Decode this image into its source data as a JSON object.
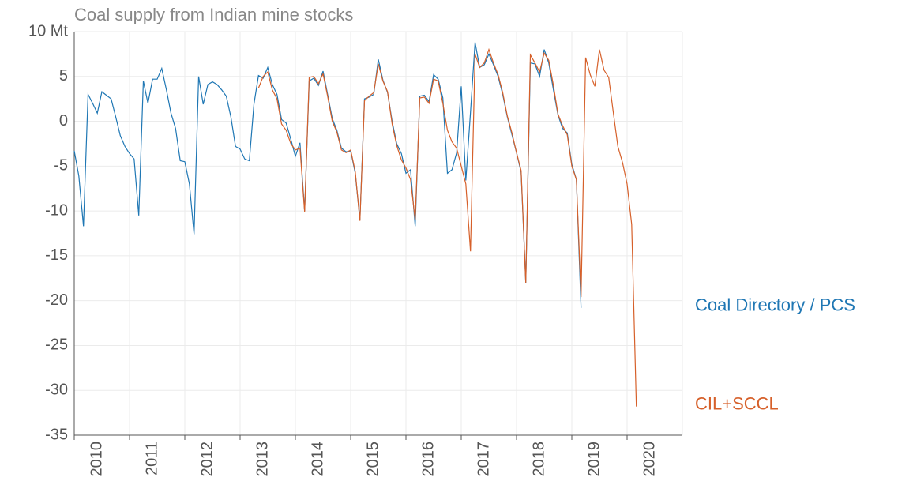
{
  "chart_data": {
    "type": "line",
    "title": "Coal supply from Indian mine stocks",
    "categories": [
      null,
      null,
      null,
      null,
      null,
      "2010",
      null,
      null,
      null,
      null,
      null,
      null,
      null,
      null,
      null,
      null,
      null,
      "2011",
      null,
      null,
      null,
      null,
      null,
      null,
      null,
      null,
      null,
      null,
      null,
      "2012",
      null,
      null,
      null,
      null,
      null,
      null,
      null,
      null,
      null,
      null,
      null,
      "2013",
      null,
      null,
      null,
      null,
      null,
      null,
      null,
      null,
      null,
      null,
      null,
      "2014",
      null,
      null,
      null,
      null,
      null,
      null,
      null,
      null,
      null,
      null,
      null,
      "2015",
      null,
      null,
      null,
      null,
      null,
      null,
      null,
      null,
      null,
      null,
      null,
      "2016",
      null,
      null,
      null,
      null,
      null,
      null,
      null,
      null,
      null,
      null,
      null,
      "2017",
      null,
      null,
      null,
      null,
      null,
      null,
      null,
      null,
      null,
      null,
      null,
      "2018",
      null,
      null,
      null,
      null,
      null,
      null,
      null,
      null,
      null,
      null,
      null,
      "2019",
      null,
      null,
      null,
      null,
      null,
      null,
      null,
      null,
      null,
      null,
      null,
      "2020",
      null,
      null,
      null,
      null,
      null,
      null
    ],
    "series": [
      {
        "name": "Coal Directory / PCS",
        "color": "#1f77b4",
        "values": [
          -3.3,
          -6.1,
          -11.7,
          3,
          2,
          0.9,
          3.3,
          2.9,
          2.5,
          0.5,
          -1.6,
          -2.8,
          -3.6,
          -4.2,
          -10.5,
          4.5,
          2,
          4.7,
          4.7,
          5.9,
          3.5,
          0.9,
          -0.8,
          -4.4,
          -4.5,
          -7,
          -12.6,
          5,
          1.9,
          4.1,
          4.4,
          4.1,
          3.5,
          2.8,
          0.5,
          -2.8,
          -3.1,
          -4.2,
          -4.4,
          1.9,
          5.1,
          4.8,
          6,
          4.1,
          3,
          0.2,
          -0.2,
          -2,
          -3.9,
          -2.4,
          -10,
          4.5,
          4.8,
          4,
          5.6,
          3,
          0.3,
          -1,
          -3,
          -3.4,
          -3.3,
          -5.8,
          -11,
          2.5,
          2.7,
          3,
          6.9,
          4.6,
          3.2,
          0,
          -2.5,
          -3.6,
          -5.8,
          -5.4,
          -11.7,
          2.8,
          2.9,
          2.2,
          5.2,
          4.7,
          2.6,
          -5.8,
          -5.4,
          -3.5,
          3.9,
          -6.6,
          1,
          8.8,
          6,
          6.3,
          7.5,
          6.3,
          5,
          3,
          0.5,
          -1.5,
          -3.5,
          -5.7,
          -18,
          6.5,
          6.4,
          5,
          8,
          6.5,
          3.5,
          0.7,
          -0.8,
          -1.3,
          -4.8,
          -6.5,
          -20.8,
          null,
          null,
          null,
          null,
          null,
          null,
          null,
          null,
          null,
          null,
          null,
          null,
          null,
          null,
          null,
          null,
          null,
          null,
          null,
          null,
          null
        ]
      },
      {
        "name": "CIL+SCCL",
        "color": "#d6602a",
        "values": [
          null,
          null,
          null,
          null,
          null,
          null,
          null,
          null,
          null,
          null,
          null,
          null,
          null,
          null,
          null,
          null,
          null,
          null,
          null,
          null,
          null,
          null,
          null,
          null,
          null,
          null,
          null,
          null,
          null,
          null,
          null,
          null,
          null,
          null,
          null,
          null,
          null,
          null,
          null,
          null,
          3.7,
          5,
          5.5,
          3.5,
          2.5,
          -0.3,
          -1,
          -2.5,
          -3.2,
          -3,
          -10.1,
          4.9,
          5,
          4.2,
          5.3,
          2.8,
          0,
          -1.2,
          -3.2,
          -3.5,
          -3.2,
          -5.6,
          -11.1,
          2.3,
          2.8,
          3.2,
          6.4,
          4.5,
          3.3,
          -0.3,
          -2.7,
          -4.3,
          -5.2,
          -6.5,
          -11,
          2.6,
          2.7,
          2,
          4.7,
          4.5,
          2,
          -1,
          -2.3,
          -3,
          -5,
          -7,
          -14.5,
          7.5,
          6,
          6.5,
          8,
          6.5,
          5.2,
          3.2,
          0.6,
          -1.3,
          -3.5,
          -5.5,
          -18,
          7.4,
          6.5,
          5.5,
          7.6,
          6.8,
          4,
          0.8,
          -0.5,
          -1.5,
          -5,
          -6.5,
          -19.6,
          7.1,
          5.2,
          3.9,
          8,
          5.7,
          4.9,
          1,
          -2.8,
          -4.6,
          -7,
          -11.5,
          -31.8,
          null,
          null,
          null,
          null,
          null,
          null,
          null,
          null,
          null
        ]
      }
    ],
    "ylim": [
      -35,
      10
    ],
    "yticks": [
      -35,
      -30,
      -25,
      -20,
      -15,
      -10,
      -5,
      0,
      5,
      {
        "value": 10,
        "label": "10 Mt"
      }
    ],
    "grid": true
  }
}
